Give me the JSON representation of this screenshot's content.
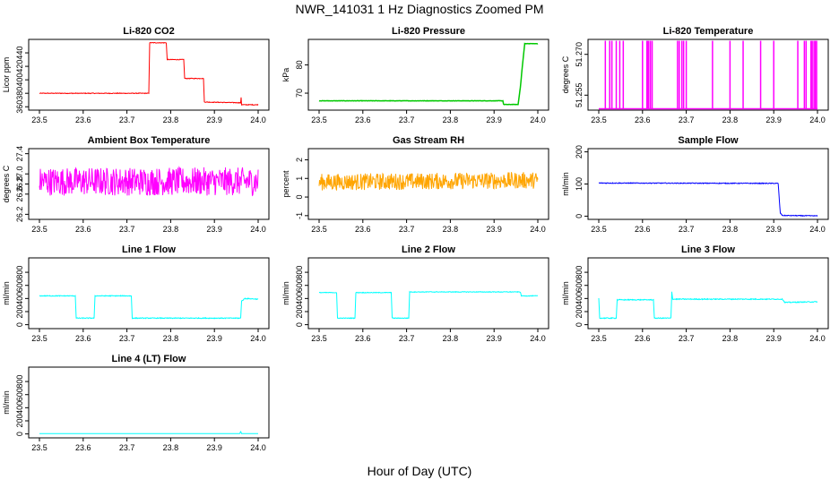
{
  "figure": {
    "title": "NWR_141031  1 Hz Diagnostics Zoomed PM",
    "xlabel": "Hour of Day (UTC)"
  },
  "chart_data": [
    {
      "type": "line",
      "title": "Li-820 CO2",
      "ylabel": "Licor ppm",
      "color": "#ff0000",
      "xlim": [
        23.5,
        24.0
      ],
      "ylim": [
        355,
        460
      ],
      "xticks": [
        "23.5",
        "23.6",
        "23.7",
        "23.8",
        "23.9",
        "24.0"
      ],
      "yticks": [
        {
          "v": 360,
          "label": "360"
        },
        {
          "v": 380,
          "label": "380"
        },
        {
          "v": 400,
          "label": "400"
        },
        {
          "v": 420,
          "label": "420"
        },
        {
          "v": 440,
          "label": "440"
        }
      ],
      "series": [
        {
          "noise": 0.5,
          "points": [
            [
              23.5,
              380
            ],
            [
              23.75,
              380
            ],
            [
              23.752,
              455
            ],
            [
              23.79,
              455
            ],
            [
              23.792,
              430
            ],
            [
              23.83,
              430
            ],
            [
              23.832,
              402
            ],
            [
              23.875,
              402
            ],
            [
              23.877,
              367
            ],
            [
              23.96,
              366
            ],
            [
              23.961,
              374
            ],
            [
              23.962,
              363
            ],
            [
              24.0,
              363
            ]
          ]
        }
      ]
    },
    {
      "type": "line",
      "title": "Li-820 Pressure",
      "ylabel": "kPa",
      "color": "#00c800",
      "xlim": [
        23.5,
        24.0
      ],
      "ylim": [
        64,
        89
      ],
      "xticks": [
        "23.5",
        "23.6",
        "23.7",
        "23.8",
        "23.9",
        "24.0"
      ],
      "yticks": [
        {
          "v": 70,
          "label": "70"
        },
        {
          "v": 80,
          "label": "80"
        }
      ],
      "series": [
        {
          "noise": 0.05,
          "points": [
            [
              23.5,
              67.3
            ],
            [
              23.92,
              67.3
            ],
            [
              23.922,
              66
            ],
            [
              23.955,
              66
            ],
            [
              23.96,
              72
            ],
            [
              23.965,
              80
            ],
            [
              23.97,
              87.5
            ],
            [
              24.0,
              87.5
            ]
          ]
        }
      ]
    },
    {
      "type": "line",
      "title": "Li-820 Temperature",
      "ylabel": "degrees C",
      "color": "#ff00ff",
      "xlim": [
        23.5,
        24.0
      ],
      "ylim": [
        51.2495,
        51.2755
      ],
      "xticks": [
        "23.5",
        "23.6",
        "23.7",
        "23.8",
        "23.9",
        "24.0"
      ],
      "yticks": [
        {
          "v": 51.255,
          "label": "51.255"
        },
        {
          "v": 51.27,
          "label": "51.270"
        }
      ],
      "series": [
        {
          "noise": 0,
          "points": [
            [
              23.5,
              51.25
            ],
            [
              24.0,
              51.25
            ]
          ]
        }
      ],
      "spikes": {
        "base": 51.25,
        "top": 51.275,
        "x": [
          23.515,
          23.525,
          23.53,
          23.54,
          23.548,
          23.556,
          23.6,
          23.61,
          23.612,
          23.614,
          23.618,
          23.622,
          23.68,
          23.684,
          23.69,
          23.694,
          23.7,
          23.76,
          23.8,
          23.83,
          23.87,
          23.9,
          23.955,
          23.97,
          23.974,
          23.985,
          23.988,
          23.992,
          23.995,
          23.998
        ]
      }
    },
    {
      "type": "line",
      "title": "Ambient Box Temperature",
      "ylabel": "degrees C",
      "color": "#ff00ff",
      "xlim": [
        23.5,
        24.0
      ],
      "ylim": [
        26.1,
        27.5
      ],
      "xticks": [
        "23.5",
        "23.6",
        "23.7",
        "23.8",
        "23.9",
        "24.0"
      ],
      "yticks": [
        {
          "v": 26.2,
          "label": "26.2"
        },
        {
          "v": 26.6,
          "label": "26.6"
        },
        {
          "v": 26.8,
          "label": "26.8"
        },
        {
          "v": 27.0,
          "label": "27.0"
        },
        {
          "v": 27.4,
          "label": "27.4"
        }
      ],
      "series": [
        {
          "noise": 0.28,
          "points": [
            [
              23.5,
              26.85
            ],
            [
              24.0,
              26.85
            ]
          ]
        }
      ]
    },
    {
      "type": "line",
      "title": "Gas Stream RH",
      "ylabel": "percent",
      "color": "#ffa500",
      "xlim": [
        23.5,
        24.0
      ],
      "ylim": [
        -1.2,
        2.6
      ],
      "xticks": [
        "23.5",
        "23.6",
        "23.7",
        "23.8",
        "23.9",
        "24.0"
      ],
      "yticks": [
        {
          "v": -1,
          "label": "-1"
        },
        {
          "v": 0,
          "label": "0"
        },
        {
          "v": 1,
          "label": "1"
        },
        {
          "v": 2,
          "label": "2"
        }
      ],
      "series": [
        {
          "noise": 0.45,
          "points": [
            [
              23.5,
              0.8
            ],
            [
              24.0,
              0.9
            ]
          ]
        }
      ]
    },
    {
      "type": "line",
      "title": "Sample Flow",
      "ylabel": "ml/min",
      "color": "#0000ff",
      "xlim": [
        23.5,
        24.0
      ],
      "ylim": [
        -10,
        210
      ],
      "xticks": [
        "23.5",
        "23.6",
        "23.7",
        "23.8",
        "23.9",
        "24.0"
      ],
      "yticks": [
        {
          "v": 0,
          "label": "0"
        },
        {
          "v": 100,
          "label": "100"
        },
        {
          "v": 200,
          "label": "200"
        }
      ],
      "series": [
        {
          "noise": 1.2,
          "points": [
            [
              23.5,
              103
            ],
            [
              23.91,
              102
            ],
            [
              23.915,
              10
            ],
            [
              23.92,
              2
            ],
            [
              24.0,
              1
            ]
          ]
        }
      ]
    },
    {
      "type": "line",
      "title": "Line 1 Flow",
      "ylabel": "ml/min",
      "color": "#00ffff",
      "xlim": [
        23.5,
        24.0
      ],
      "ylim": [
        -60,
        1020
      ],
      "xticks": [
        "23.5",
        "23.6",
        "23.7",
        "23.8",
        "23.9",
        "24.0"
      ],
      "yticks": [
        {
          "v": 0,
          "label": "0"
        },
        {
          "v": 200,
          "label": "200"
        },
        {
          "v": 400,
          "label": "400"
        },
        {
          "v": 600,
          "label": "600"
        },
        {
          "v": 800,
          "label": "800"
        }
      ],
      "series": [
        {
          "noise": 6,
          "points": [
            [
              23.5,
              440
            ],
            [
              23.582,
              440
            ],
            [
              23.584,
              100
            ],
            [
              23.625,
              100
            ],
            [
              23.627,
              440
            ],
            [
              23.71,
              440
            ],
            [
              23.712,
              100
            ],
            [
              23.96,
              100
            ],
            [
              23.962,
              360
            ],
            [
              23.97,
              400
            ],
            [
              24.0,
              390
            ]
          ]
        }
      ]
    },
    {
      "type": "line",
      "title": "Line 2 Flow",
      "ylabel": "ml/min",
      "color": "#00ffff",
      "xlim": [
        23.5,
        24.0
      ],
      "ylim": [
        -60,
        1020
      ],
      "xticks": [
        "23.5",
        "23.6",
        "23.7",
        "23.8",
        "23.9",
        "24.0"
      ],
      "yticks": [
        {
          "v": 0,
          "label": "0"
        },
        {
          "v": 200,
          "label": "200"
        },
        {
          "v": 400,
          "label": "400"
        },
        {
          "v": 600,
          "label": "600"
        },
        {
          "v": 800,
          "label": "800"
        }
      ],
      "series": [
        {
          "noise": 5,
          "points": [
            [
              23.5,
              490
            ],
            [
              23.54,
              490
            ],
            [
              23.542,
              100
            ],
            [
              23.582,
              100
            ],
            [
              23.584,
              490
            ],
            [
              23.665,
              490
            ],
            [
              23.667,
              100
            ],
            [
              23.705,
              100
            ],
            [
              23.707,
              500
            ],
            [
              23.96,
              500
            ],
            [
              23.962,
              440
            ],
            [
              24.0,
              440
            ]
          ]
        }
      ]
    },
    {
      "type": "line",
      "title": "Line 3 Flow",
      "ylabel": "ml/min",
      "color": "#00ffff",
      "xlim": [
        23.5,
        24.0
      ],
      "ylim": [
        -60,
        1020
      ],
      "xticks": [
        "23.5",
        "23.6",
        "23.7",
        "23.8",
        "23.9",
        "24.0"
      ],
      "yticks": [
        {
          "v": 0,
          "label": "0"
        },
        {
          "v": 200,
          "label": "200"
        },
        {
          "v": 400,
          "label": "400"
        },
        {
          "v": 600,
          "label": "600"
        },
        {
          "v": 800,
          "label": "800"
        }
      ],
      "series": [
        {
          "noise": 7,
          "points": [
            [
              23.5,
              410
            ],
            [
              23.502,
              100
            ],
            [
              23.54,
              100
            ],
            [
              23.542,
              380
            ],
            [
              23.625,
              380
            ],
            [
              23.627,
              100
            ],
            [
              23.665,
              100
            ],
            [
              23.667,
              500
            ],
            [
              23.669,
              390
            ],
            [
              23.92,
              390
            ],
            [
              23.925,
              340
            ],
            [
              24.0,
              350
            ]
          ]
        }
      ]
    },
    {
      "type": "line",
      "title": "Line 4 (LT) Flow",
      "ylabel": "ml/min",
      "color": "#00ffff",
      "xlim": [
        23.5,
        24.0
      ],
      "ylim": [
        -60,
        1020
      ],
      "xticks": [
        "23.5",
        "23.6",
        "23.7",
        "23.8",
        "23.9",
        "24.0"
      ],
      "yticks": [
        {
          "v": 0,
          "label": "0"
        },
        {
          "v": 200,
          "label": "200"
        },
        {
          "v": 400,
          "label": "400"
        },
        {
          "v": 600,
          "label": "600"
        },
        {
          "v": 800,
          "label": "800"
        }
      ],
      "series": [
        {
          "noise": 1,
          "points": [
            [
              23.5,
              5
            ],
            [
              23.958,
              5
            ],
            [
              23.96,
              40
            ],
            [
              23.962,
              5
            ],
            [
              24.0,
              5
            ]
          ]
        }
      ]
    }
  ]
}
